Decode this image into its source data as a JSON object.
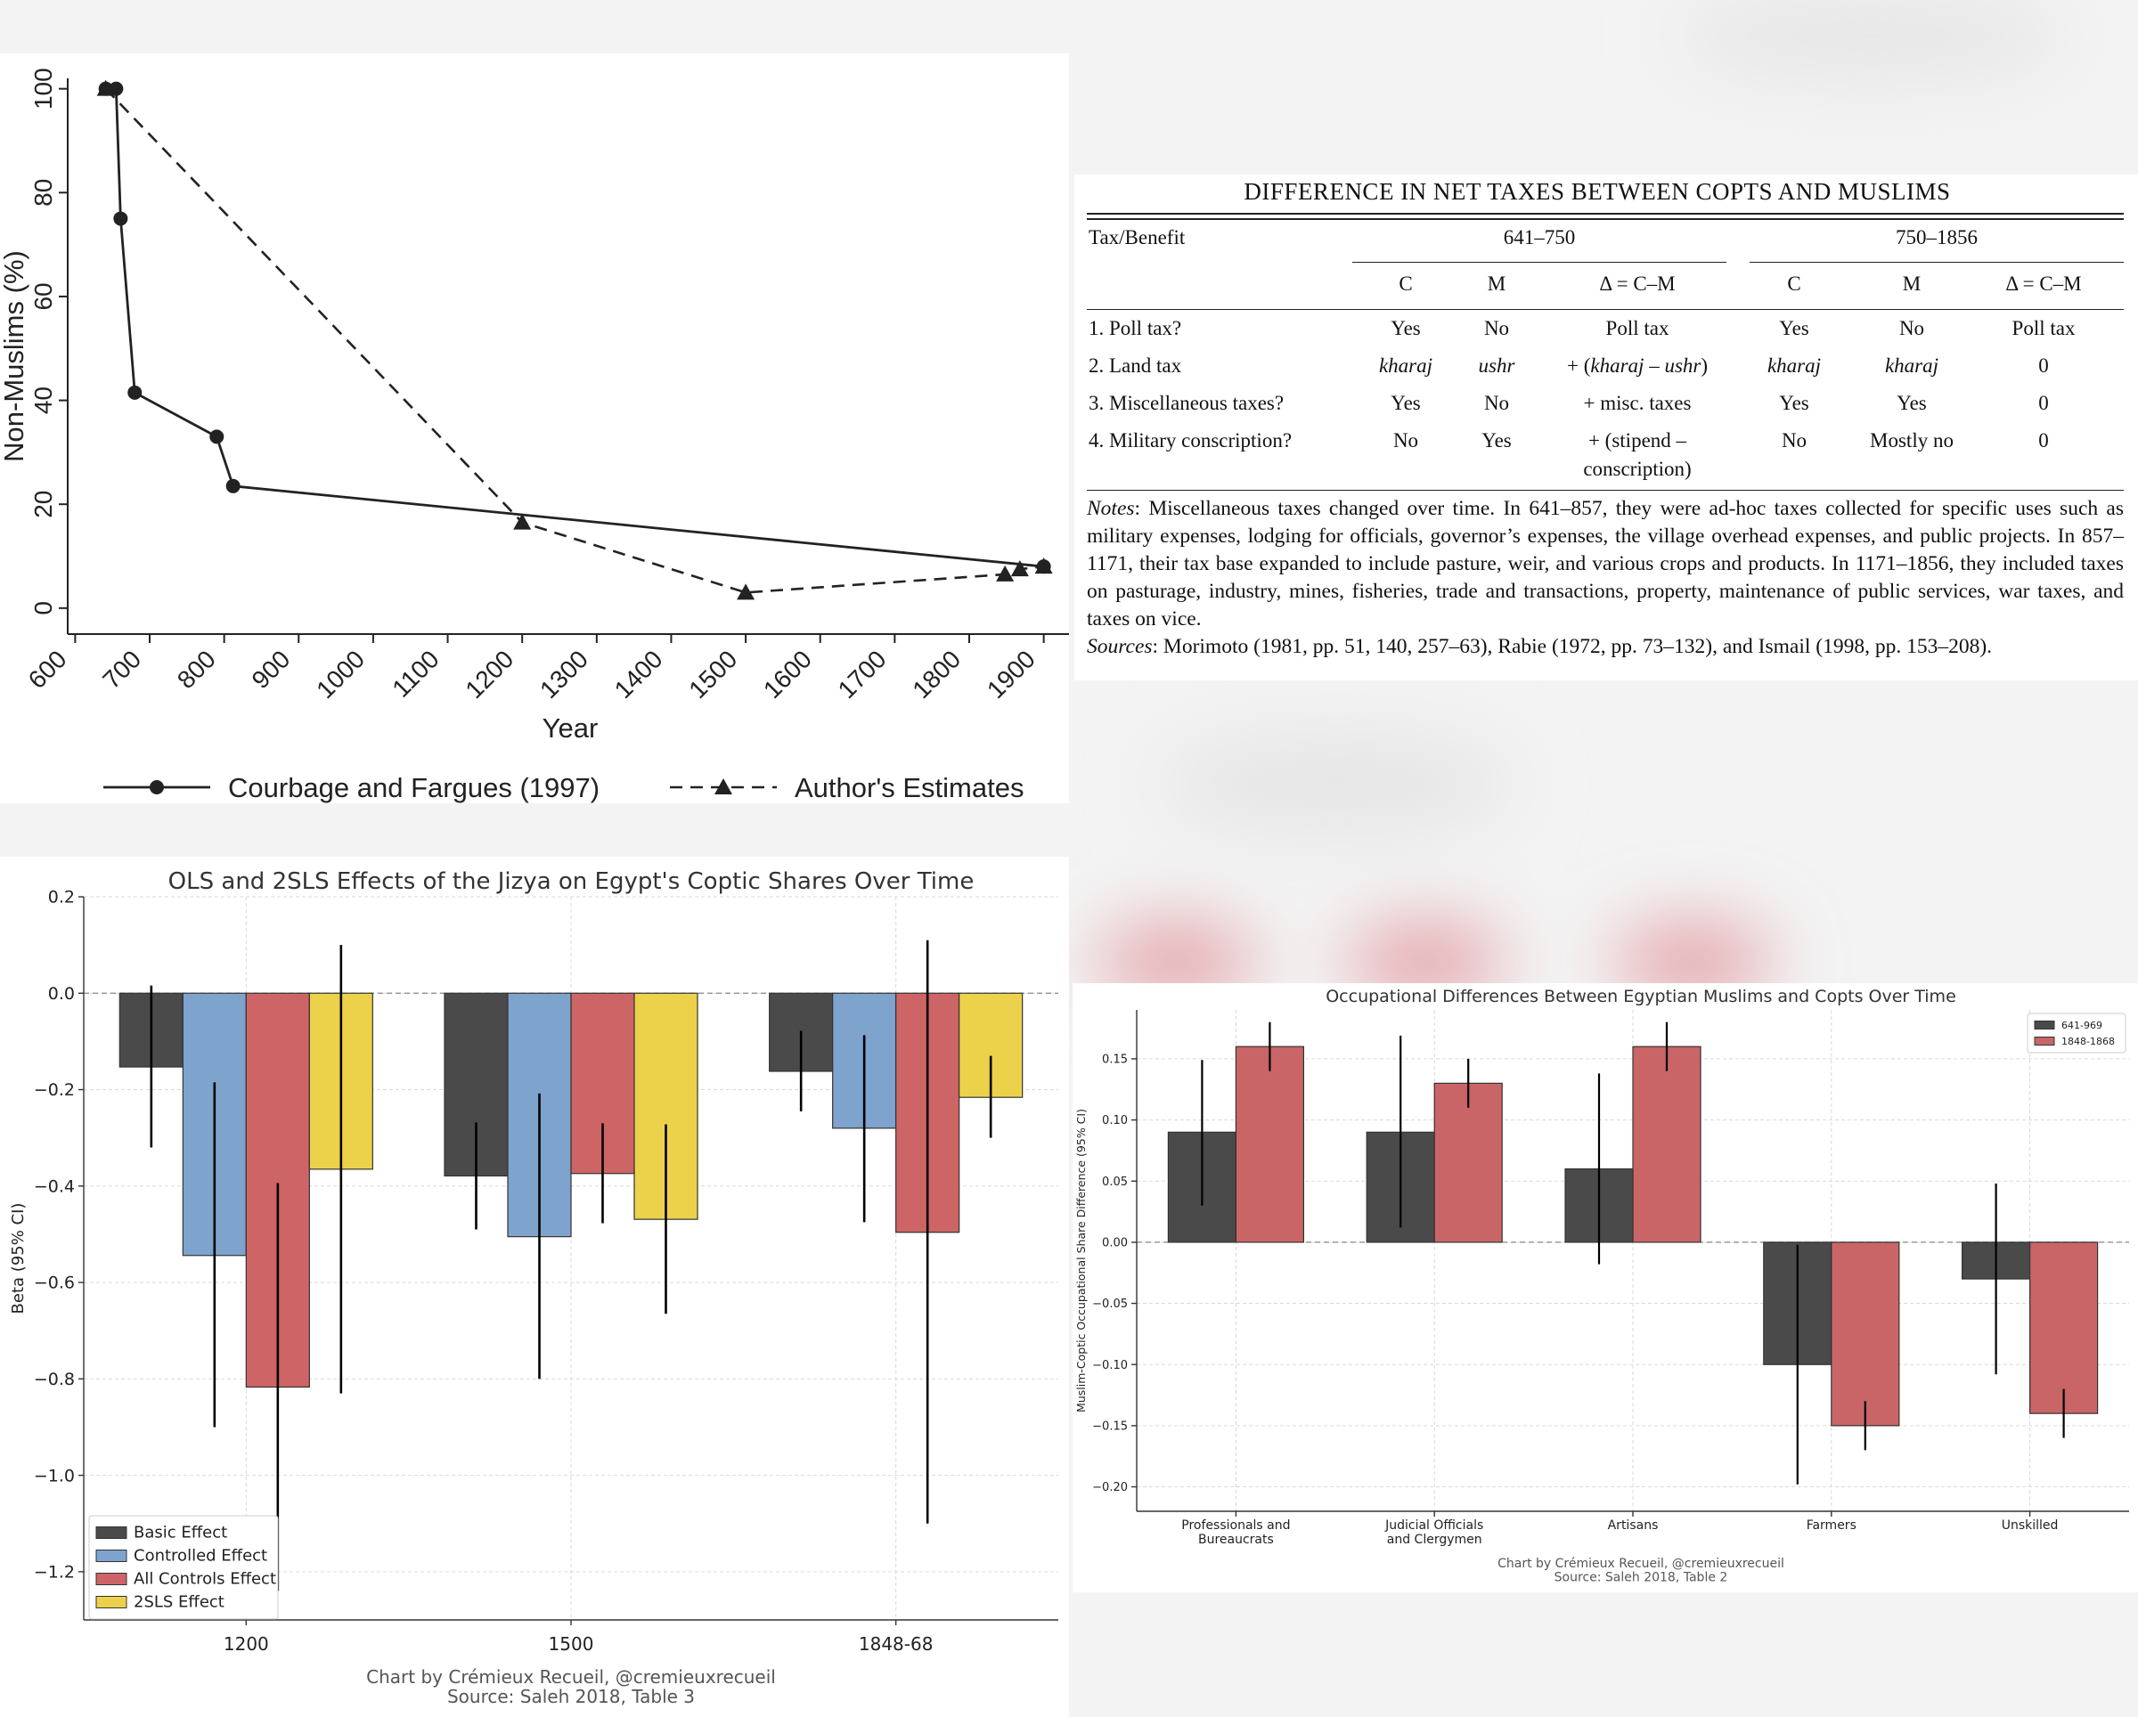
{
  "colors": {
    "dark": "#4a4a4a",
    "blue": "#7ea3cd",
    "red": "#cd6466",
    "yellow": "#ecd24a",
    "red2": "#c96566"
  },
  "chart_data": [
    {
      "type": "line",
      "title": "",
      "xlabel": "Year",
      "ylabel": "Non-Muslims (%)",
      "xlim": [
        590,
        1910
      ],
      "ylim": [
        -5,
        102
      ],
      "xticks": [
        600,
        700,
        800,
        900,
        1000,
        1100,
        1200,
        1300,
        1400,
        1500,
        1600,
        1700,
        1800,
        1900
      ],
      "yticks": [
        0,
        20,
        40,
        60,
        80,
        100
      ],
      "legend_position": "bottom",
      "series": [
        {
          "name": "Courbage and Fargues (1997)",
          "marker": "circle",
          "style": "solid",
          "x": [
            641,
            655,
            661,
            680,
            790,
            812,
            1900
          ],
          "y": [
            100,
            100,
            75,
            41.5,
            33,
            23.5,
            8
          ]
        },
        {
          "name": "Author's Estimates",
          "marker": "triangle",
          "style": "dashed",
          "x": [
            641,
            1200,
            1500,
            1848,
            1868,
            1900
          ],
          "y": [
            100,
            16.5,
            3,
            6.5,
            7.5,
            8
          ]
        }
      ]
    },
    {
      "type": "bar",
      "title": "OLS and 2SLS Effects of the Jizya on Egypt's Coptic Shares Over Time",
      "xlabel": "",
      "ylabel": "Beta (95% CI)",
      "ylim": [
        -1.3,
        0.2
      ],
      "yticks": [
        0.2,
        0,
        -0.2,
        -0.4,
        -0.6,
        -0.8,
        -1.0,
        -1.2
      ],
      "ytick_labels": [
        "0.2",
        "0.0",
        "−0.2",
        "−0.4",
        "−0.6",
        "−0.8",
        "−1.0",
        "−1.2"
      ],
      "categories": [
        "1200",
        "1500",
        "1848-68"
      ],
      "legend_position": "lower-left",
      "credit": "Chart by Crémieux Recueil, @cremieuxrecueil",
      "source": "Source: Saleh 2018, Table 3",
      "series": [
        {
          "name": "Basic Effect",
          "values": [
            -0.153,
            -0.379,
            -0.162
          ],
          "ci_low": [
            -0.32,
            -0.49,
            -0.245
          ],
          "ci_high": [
            0.016,
            -0.268,
            -0.078
          ]
        },
        {
          "name": "Controlled Effect",
          "values": [
            -0.544,
            -0.505,
            -0.28
          ],
          "ci_low": [
            -0.9,
            -0.8,
            -0.475
          ],
          "ci_high": [
            -0.185,
            -0.208,
            -0.087
          ]
        },
        {
          "name": "All Controls Effect",
          "values": [
            -0.817,
            -0.374,
            -0.496
          ],
          "ci_low": [
            -1.24,
            -0.477,
            -1.1
          ],
          "ci_high": [
            -0.394,
            -0.27,
            0.11
          ]
        },
        {
          "name": "2SLS Effect",
          "values": [
            -0.365,
            -0.469,
            -0.216
          ],
          "ci_low": [
            -0.83,
            -0.665,
            -0.3
          ],
          "ci_high": [
            0.1,
            -0.272,
            -0.13
          ]
        }
      ]
    },
    {
      "type": "bar",
      "title": "Occupational Differences Between Egyptian Muslims and Copts Over Time",
      "xlabel": "",
      "ylabel": "Muslim-Coptic Occupational Share Difference (95% CI)",
      "ylim": [
        -0.22,
        0.19
      ],
      "yticks": [
        0.15,
        0.1,
        0.05,
        0.0,
        -0.05,
        -0.1,
        -0.15,
        -0.2
      ],
      "ytick_labels": [
        "0.15",
        "0.10",
        "0.05",
        "0.00",
        "−0.05",
        "−0.10",
        "−0.15",
        "−0.20"
      ],
      "categories": [
        "Professionals and Bureaucrats",
        "Judicial Officials and Clergymen",
        "Artisans",
        "Farmers",
        "Unskilled"
      ],
      "legend_position": "top-right",
      "credit": "Chart by Crémieux Recueil, @cremieuxrecueil",
      "source": "Source: Saleh 2018, Table 2",
      "series": [
        {
          "name": "641-969",
          "values": [
            0.09,
            0.09,
            0.06,
            -0.1,
            -0.03
          ],
          "ci_low": [
            0.03,
            0.012,
            -0.018,
            -0.198,
            -0.108
          ],
          "ci_high": [
            0.149,
            0.169,
            0.138,
            -0.002,
            0.048
          ]
        },
        {
          "name": "1848-1868",
          "values": [
            0.16,
            0.13,
            0.16,
            -0.15,
            -0.14
          ],
          "ci_low": [
            0.14,
            0.11,
            0.14,
            -0.17,
            -0.16
          ],
          "ci_high": [
            0.18,
            0.15,
            0.18,
            -0.13,
            -0.12
          ]
        }
      ]
    }
  ],
  "table": {
    "title": "DIFFERENCE IN NET TAXES BETWEEN COPTS AND MUSLIMS",
    "row_header": "Tax/Benefit",
    "period1": "641–750",
    "period2": "750–1856",
    "sub": [
      "C",
      "M",
      "Δ = C–M",
      "C",
      "M",
      "Δ = C–M"
    ],
    "rows": [
      {
        "label": "1. Poll tax?",
        "c1": "Yes",
        "m1": "No",
        "d1": "Poll tax",
        "c2": "Yes",
        "m2": "No",
        "d2": "Poll tax"
      },
      {
        "label": "2. Land tax",
        "c1": "kharaj",
        "m1": "ushr",
        "d1": "+ (kharaj – ushr)",
        "c2": "kharaj",
        "m2": "kharaj",
        "d2": "0"
      },
      {
        "label": "3. Miscellaneous taxes?",
        "c1": "Yes",
        "m1": "No",
        "d1": "+ misc. taxes",
        "c2": "Yes",
        "m2": "Yes",
        "d2": "0"
      },
      {
        "label": "4. Military conscription?",
        "c1": "No",
        "m1": "Yes",
        "d1": "+ (stipend –",
        "d1b": "conscription)",
        "c2": "No",
        "m2": "Mostly no",
        "d2": "0"
      }
    ],
    "notes_label": "Notes",
    "notes_text": ": Miscellaneous taxes changed over time. In 641–857, they were ad-hoc taxes collected for specific uses such as military expenses, lodging for officials, governor’s expenses, the village overhead expenses, and public projects. In 857–1171, their tax base expanded to include pasture, weir, and various crops and products. In 1171–1856, they included taxes on pasturage, industry, mines, fisheries, trade and transactions, property, maintenance of public services, war taxes, and taxes on vice.",
    "sources_label": "Sources",
    "sources_text": ": Morimoto (1981, pp. 51, 140, 257–63), Rabie (1972, pp. 73–132), and Ismail (1998, pp. 153–208)."
  }
}
